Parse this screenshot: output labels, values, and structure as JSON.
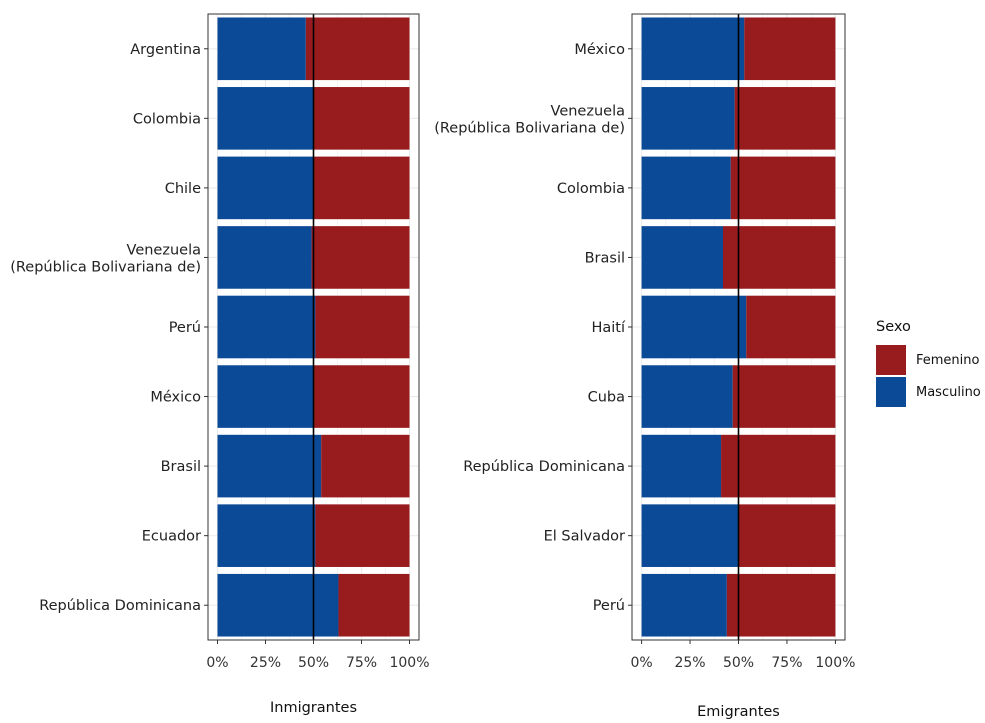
{
  "legend": {
    "title": "Sexo",
    "items": [
      {
        "label": "Femenino",
        "color": "#981b1e"
      },
      {
        "label": "Masculino",
        "color": "#0b4a97"
      }
    ]
  },
  "chart_data": [
    {
      "type": "bar",
      "orientation": "horizontal",
      "stacked": "percent",
      "xlabel": "Inmigrantes",
      "ylabel": "",
      "xlim": [
        0,
        100
      ],
      "x_ticks": [
        "0%",
        "25%",
        "50%",
        "75%",
        "100%"
      ],
      "reference_line": 50,
      "grid": true,
      "categories": [
        "Argentina",
        "Colombia",
        "Chile",
        "Venezuela\n(República Bolivariana de)",
        "Perú",
        "México",
        "Brasil",
        "Ecuador",
        "República Dominicana"
      ],
      "series": [
        {
          "name": "Masculino",
          "values": [
            46,
            50,
            50,
            49,
            51,
            50,
            54,
            51,
            63
          ]
        },
        {
          "name": "Femenino",
          "values": [
            54,
            50,
            50,
            51,
            49,
            50,
            46,
            49,
            37
          ]
        }
      ]
    },
    {
      "type": "bar",
      "orientation": "horizontal",
      "stacked": "percent",
      "xlabel": "Emigrantes",
      "ylabel": "",
      "xlim": [
        0,
        100
      ],
      "x_ticks": [
        "0%",
        "25%",
        "50%",
        "75%",
        "100%"
      ],
      "reference_line": 50,
      "grid": true,
      "categories": [
        "México",
        "Venezuela\n(República Bolivariana de)",
        "Colombia",
        "Brasil",
        "Haití",
        "Cuba",
        "República Dominicana",
        "El Salvador",
        "Perú"
      ],
      "series": [
        {
          "name": "Masculino",
          "values": [
            53,
            48,
            46,
            42,
            54,
            47,
            41,
            50,
            44
          ]
        },
        {
          "name": "Femenino",
          "values": [
            47,
            52,
            54,
            58,
            46,
            53,
            59,
            50,
            56
          ]
        }
      ]
    }
  ]
}
